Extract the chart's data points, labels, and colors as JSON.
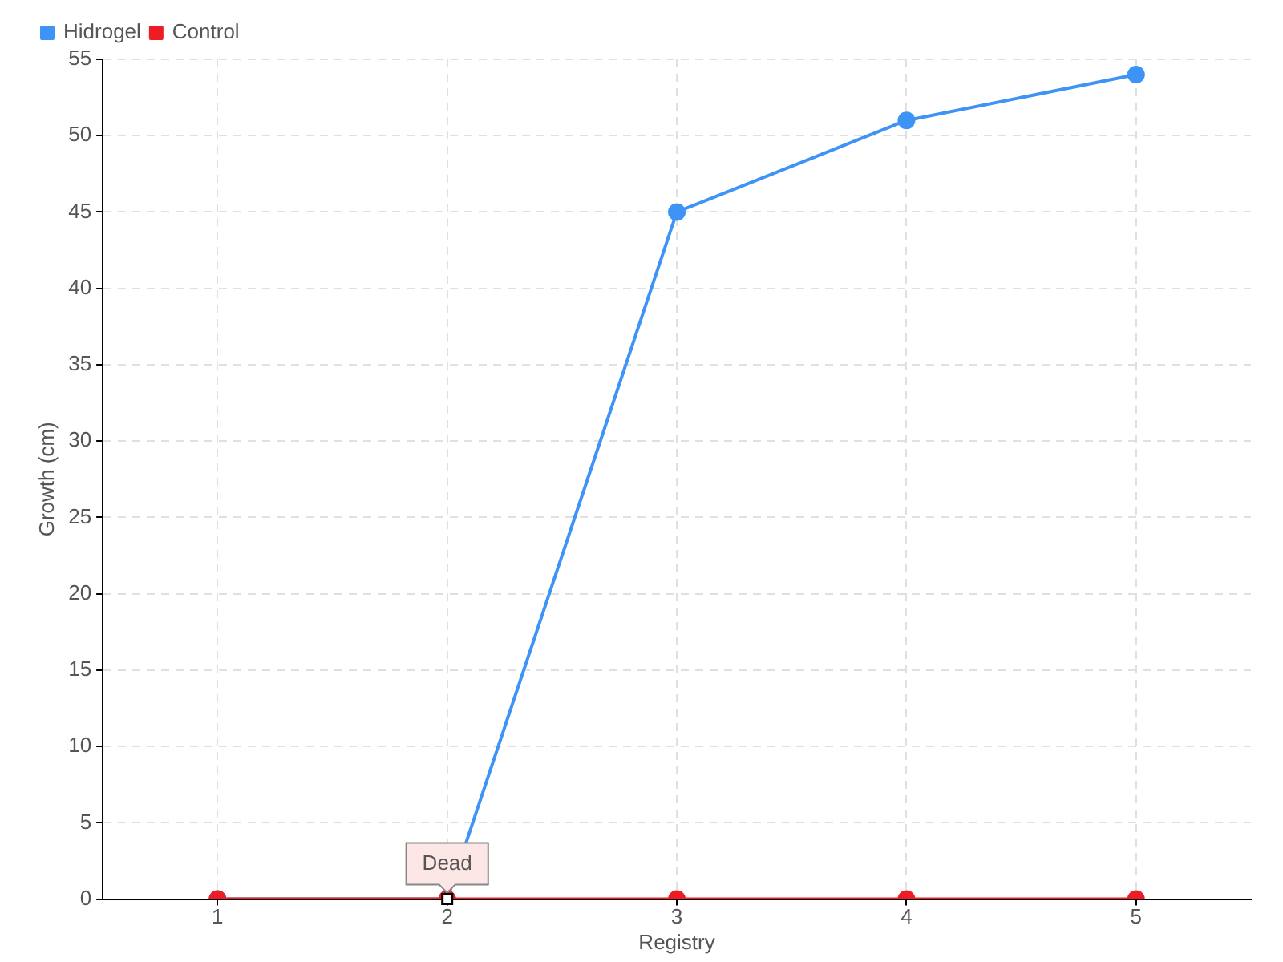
{
  "chart_data": {
    "type": "line",
    "xlabel": "Registry",
    "ylabel": "Growth (cm)",
    "categories": [
      "1",
      "2",
      "3",
      "4",
      "5"
    ],
    "series": [
      {
        "name": "Hidrogel",
        "color": "#3d94f6",
        "values": [
          0,
          0,
          45,
          51,
          54
        ]
      },
      {
        "name": "Control",
        "color": "#ee1c25",
        "values": [
          0,
          0,
          0,
          0,
          0
        ]
      }
    ],
    "ylim": [
      0,
      55
    ],
    "yticks": [
      0,
      5,
      10,
      15,
      20,
      25,
      30,
      35,
      40,
      45,
      50,
      55
    ],
    "grid": true,
    "legend": "top left",
    "marker": "circle",
    "line_style": "solid",
    "annotations": [
      {
        "text": "Dead",
        "x": "2",
        "y": 0
      }
    ]
  }
}
